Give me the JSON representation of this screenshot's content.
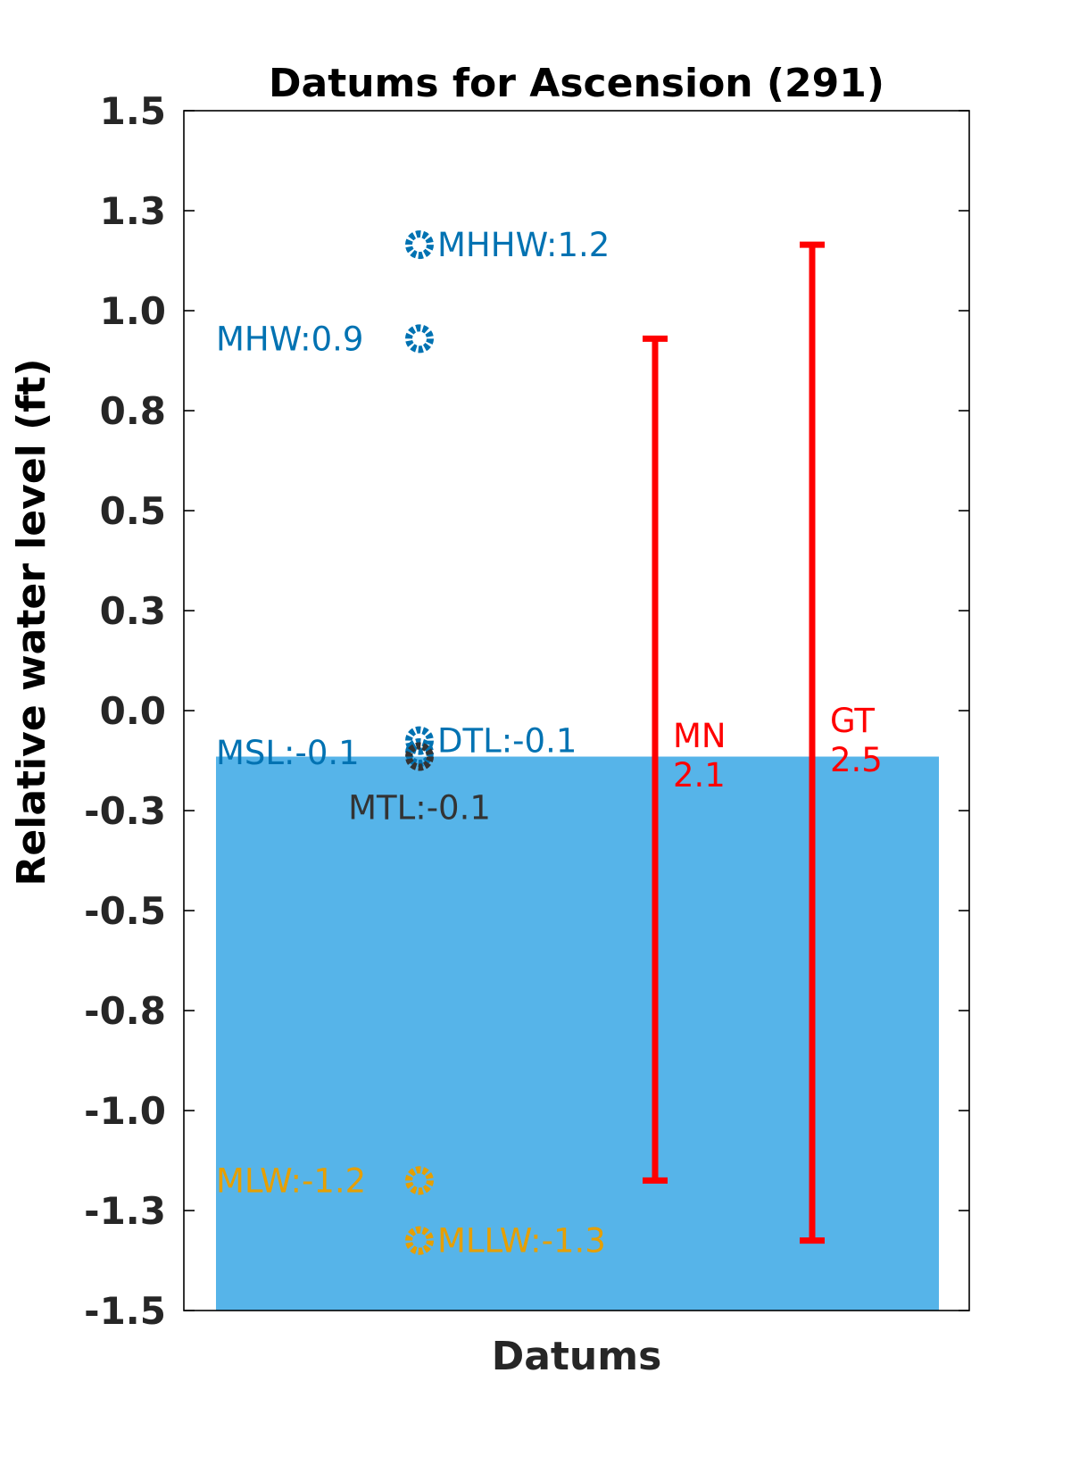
{
  "chart_data": {
    "type": "scatter",
    "title": "Datums for Ascension (291)",
    "xlabel": "Datums",
    "ylabel": "Relative water level (ft)",
    "ylim": [
      -1.5,
      1.5
    ],
    "y_ticks": [
      1.5,
      1.25,
      1.0,
      0.75,
      0.5,
      0.25,
      0.0,
      -0.25,
      -0.5,
      -0.75,
      -1.0,
      -1.25,
      -1.5
    ],
    "y_tick_labels": [
      "1.5",
      "1.3",
      "1.0",
      "0.8",
      "0.5",
      "0.3",
      "0.0",
      "-0.3",
      "-0.5",
      "-0.8",
      "-1.0",
      "-1.3",
      "-1.5"
    ],
    "grid": false,
    "water_level": -0.115,
    "water_color": "#56B4E9",
    "datums": [
      {
        "name": "MHHW",
        "value": 1.165,
        "label": "MHHW:1.2",
        "color": "#0072B2",
        "label_side": "right"
      },
      {
        "name": "MHW",
        "value": 0.93,
        "label": "MHW:0.9",
        "color": "#0072B2",
        "label_side": "left"
      },
      {
        "name": "DTL",
        "value": -0.075,
        "label": "DTL:-0.1",
        "color": "#0072B2",
        "label_side": "right"
      },
      {
        "name": "MSL",
        "value": -0.105,
        "label": "MSL:-0.1",
        "color": "#0072B2",
        "label_side": "left"
      },
      {
        "name": "MTL",
        "value": -0.115,
        "label": "MTL:-0.1",
        "color": "#333333",
        "label_side": "below"
      },
      {
        "name": "MLW",
        "value": -1.175,
        "label": "MLW:-1.2",
        "color": "#E69F00",
        "label_side": "left"
      },
      {
        "name": "MLLW",
        "value": -1.325,
        "label": "MLLW:-1.3",
        "color": "#E69F00",
        "label_side": "right"
      }
    ],
    "ranges": [
      {
        "name": "MN",
        "low": -1.175,
        "high": 0.93,
        "label_name": "MN",
        "label_value": "2.1",
        "color": "#FF0000"
      },
      {
        "name": "GT",
        "low": -1.325,
        "high": 1.165,
        "label_name": "GT",
        "label_value": "2.5",
        "color": "#FF0000"
      }
    ]
  }
}
